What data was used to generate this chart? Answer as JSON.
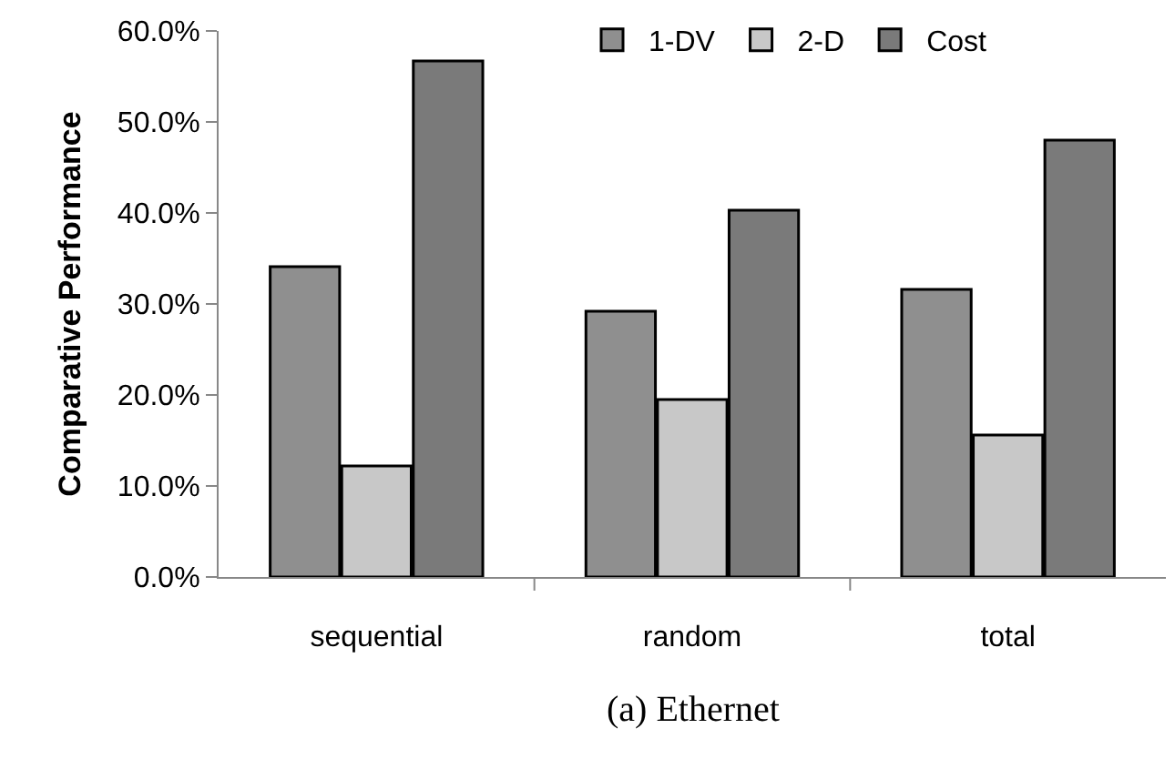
{
  "chart_data": {
    "type": "bar",
    "ylabel": "Comparative Performance",
    "categories": [
      "sequential",
      "random",
      "total"
    ],
    "series": [
      {
        "name": "1-DV",
        "color": "#8f8f8f",
        "values": [
          34.1,
          29.2,
          31.6
        ]
      },
      {
        "name": "2-D",
        "color": "#c8c8c8",
        "values": [
          12.2,
          19.5,
          15.6
        ]
      },
      {
        "name": "Cost",
        "color": "#7a7a7a",
        "values": [
          56.7,
          40.3,
          48.0
        ]
      }
    ],
    "ylim": [
      0,
      60
    ],
    "yticks": [
      {
        "value": 0,
        "label": "0.0%"
      },
      {
        "value": 10,
        "label": "10.0%"
      },
      {
        "value": 20,
        "label": "20.0%"
      },
      {
        "value": 30,
        "label": "30.0%"
      },
      {
        "value": 40,
        "label": "40.0%"
      },
      {
        "value": 50,
        "label": "50.0%"
      },
      {
        "value": 60,
        "label": "60.0%"
      }
    ],
    "legend": "top",
    "grid": false,
    "annotations": [
      "(a) Ethernet"
    ]
  }
}
